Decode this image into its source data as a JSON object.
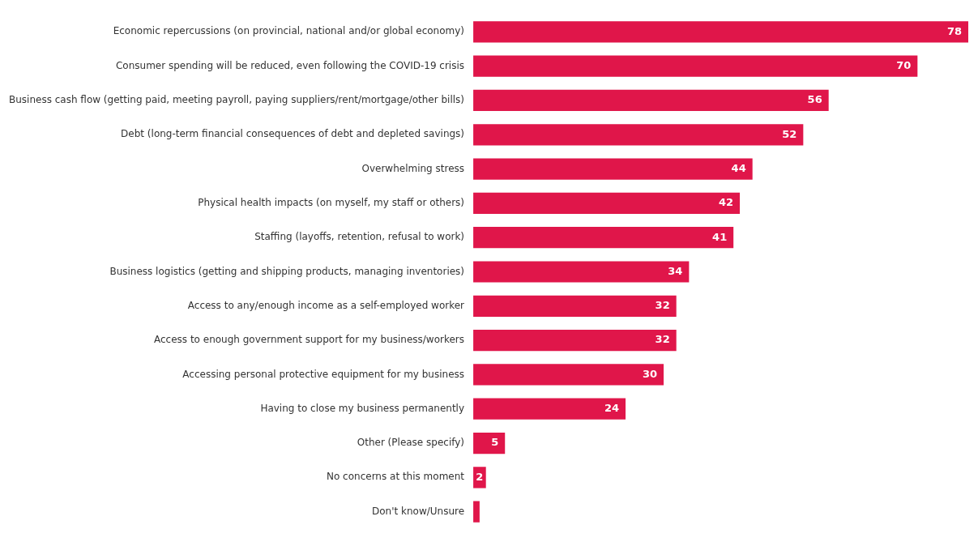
{
  "chart_data": {
    "type": "bar",
    "orientation": "horizontal",
    "categories": [
      "Economic repercussions (on provincial, national and/or global economy)",
      "Consumer spending will be reduced, even following the COVID-19 crisis",
      "Business cash flow (getting paid, meeting payroll, paying suppliers/rent/mortgage/other bills)",
      "Debt (long-term financial consequences of debt and depleted savings)",
      "Overwhelming stress",
      "Physical health impacts (on myself, my staff or others)",
      "Staffing (layoffs, retention, refusal to work)",
      "Business logistics (getting and shipping products, managing inventories)",
      "Access to any/enough income as a self-employed worker",
      "Access to enough government support for my business/workers",
      "Accessing personal protective equipment for my business",
      "Having to close my business permanently",
      "Other (Please specify)",
      "No concerns at this moment",
      "Don't know/Unsure"
    ],
    "values": [
      78,
      70,
      56,
      52,
      44,
      42,
      41,
      34,
      32,
      32,
      30,
      24,
      5,
      2,
      1
    ],
    "value_labels": [
      "78",
      "70",
      "56",
      "52",
      "44",
      "42",
      "41",
      "34",
      "32",
      "32",
      "30",
      "24",
      "5",
      "2",
      null
    ],
    "color": "#e0164a"
  }
}
